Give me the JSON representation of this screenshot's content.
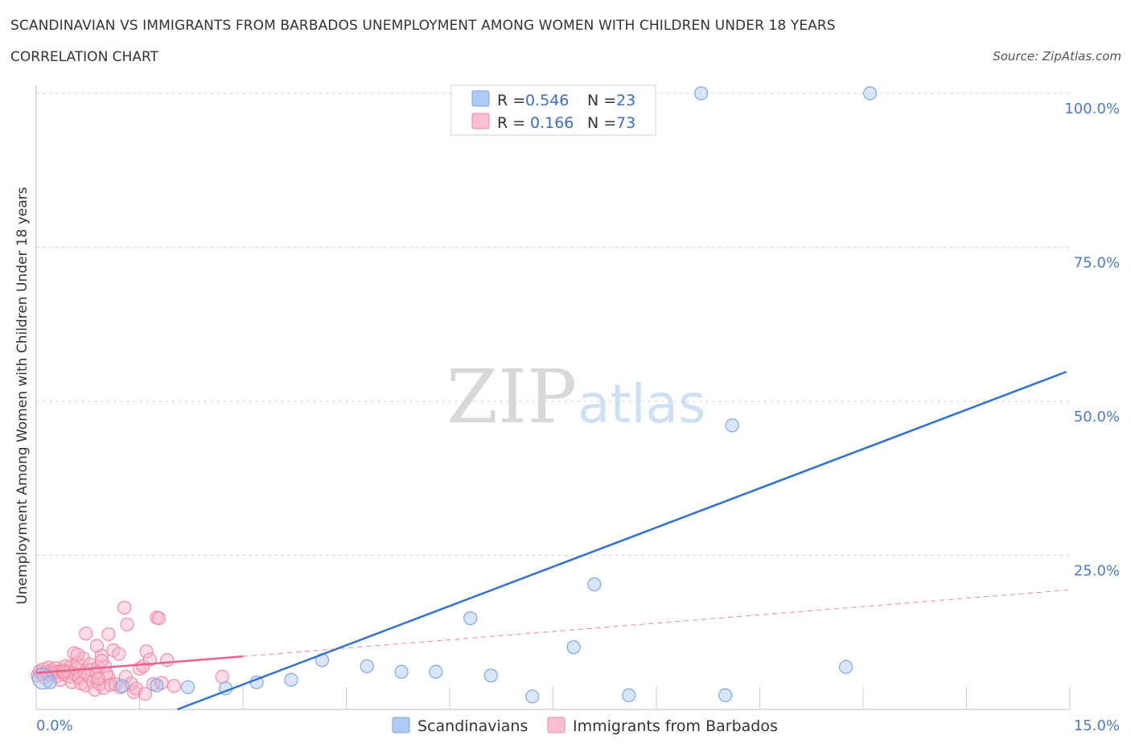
{
  "header": {
    "title": "SCANDINAVIAN VS IMMIGRANTS FROM BARBADOS UNEMPLOYMENT AMONG WOMEN WITH CHILDREN UNDER 18 YEARS",
    "subtitle": "CORRELATION CHART",
    "source": "Source: ZipAtlas.com"
  },
  "watermark": {
    "zip": "ZIP",
    "atlas": "atlas"
  },
  "legend": {
    "r_label": "R =",
    "n_label": "N =",
    "rows": [
      {
        "r": "0.546",
        "n": "23",
        "color": "#aecbf5",
        "stroke": "#7aa5e0"
      },
      {
        "r": "0.166",
        "n": "73",
        "color": "#f9bfd0",
        "stroke": "#f08aa8"
      }
    ]
  },
  "colors": {
    "blue_point_fill": "rgba(170,198,240,0.45)",
    "blue_point_stroke": "#7fa8e4",
    "blue_line": "#2f72cf",
    "pink_point_fill": "rgba(249,180,200,0.45)",
    "pink_point_stroke": "#f08aa8",
    "pink_line": "#e8628f",
    "grid": "#d6d6d6",
    "axis_tick": "#4a7cc7"
  },
  "chart_data": {
    "type": "scatter",
    "title": "SCANDINAVIAN VS IMMIGRANTS FROM BARBADOS UNEMPLOYMENT AMONG WOMEN WITH CHILDREN UNDER 18 YEARS",
    "subtitle": "CORRELATION CHART",
    "xlabel": "",
    "ylabel": "Unemployment Among Women with Children Under 18 years",
    "xlim": [
      0,
      15
    ],
    "ylim": [
      0,
      100
    ],
    "x_tick_labels": [
      "0.0%",
      "15.0%"
    ],
    "y_tick_labels": [
      "25.0%",
      "50.0%",
      "75.0%",
      "100.0%"
    ],
    "y_ticks": [
      25,
      50,
      75,
      100
    ],
    "grid": true,
    "legend_position": "top-center",
    "series": [
      {
        "name": "Scandinavians",
        "R": 0.546,
        "N": 23,
        "points": [
          [
            0.1,
            5.0
          ],
          [
            0.2,
            4.4
          ],
          [
            1.25,
            3.8
          ],
          [
            1.75,
            3.9
          ],
          [
            2.2,
            3.6
          ],
          [
            2.75,
            3.4
          ],
          [
            3.2,
            4.4
          ],
          [
            3.7,
            4.8
          ],
          [
            4.15,
            8.0
          ],
          [
            4.8,
            7.0
          ],
          [
            5.3,
            6.1
          ],
          [
            5.8,
            6.1
          ],
          [
            6.3,
            14.8
          ],
          [
            6.6,
            5.5
          ],
          [
            7.2,
            2.1
          ],
          [
            7.8,
            10.1
          ],
          [
            8.1,
            20.3
          ],
          [
            8.6,
            2.3
          ],
          [
            10.0,
            2.3
          ],
          [
            10.1,
            46.1
          ],
          [
            9.65,
            100
          ],
          [
            11.75,
            6.9
          ],
          [
            12.1,
            100
          ]
        ],
        "trendline": {
          "x": [
            2.05,
            14.95
          ],
          "y": [
            0,
            54.8
          ]
        }
      },
      {
        "name": "Immigrants from Barbados",
        "R": 0.166,
        "N": 73,
        "points": [
          [
            0.02,
            5.5
          ],
          [
            0.05,
            6.2
          ],
          [
            0.08,
            5.8
          ],
          [
            0.1,
            6.5
          ],
          [
            0.12,
            5.2
          ],
          [
            0.15,
            6.0
          ],
          [
            0.18,
            6.8
          ],
          [
            0.2,
            5.6
          ],
          [
            0.22,
            6.3
          ],
          [
            0.25,
            5.9
          ],
          [
            0.28,
            6.7
          ],
          [
            0.3,
            5.4
          ],
          [
            0.32,
            6.1
          ],
          [
            0.35,
            4.8
          ],
          [
            0.38,
            6.4
          ],
          [
            0.4,
            5.7
          ],
          [
            0.42,
            7.0
          ],
          [
            0.45,
            6.2
          ],
          [
            0.48,
            5.3
          ],
          [
            0.5,
            6.9
          ],
          [
            0.52,
            4.4
          ],
          [
            0.55,
            5.8
          ],
          [
            0.58,
            6.6
          ],
          [
            0.6,
            7.6
          ],
          [
            0.62,
            5.1
          ],
          [
            0.65,
            4.2
          ],
          [
            0.68,
            8.3
          ],
          [
            0.7,
            6.0
          ],
          [
            0.72,
            3.9
          ],
          [
            0.75,
            5.5
          ],
          [
            0.78,
            7.3
          ],
          [
            0.8,
            6.4
          ],
          [
            0.82,
            4.5
          ],
          [
            0.85,
            3.2
          ],
          [
            0.88,
            5.9
          ],
          [
            0.9,
            6.8
          ],
          [
            0.92,
            4.1
          ],
          [
            0.95,
            8.7
          ],
          [
            0.98,
            3.5
          ],
          [
            1.0,
            7.0
          ],
          [
            1.05,
            5.2
          ],
          [
            1.08,
            4.0
          ],
          [
            0.55,
            9.1
          ],
          [
            0.6,
            8.9
          ],
          [
            0.72,
            12.3
          ],
          [
            0.88,
            10.3
          ],
          [
            0.95,
            7.9
          ],
          [
            1.02,
            5.8
          ],
          [
            1.05,
            12.2
          ],
          [
            1.12,
            9.6
          ],
          [
            1.2,
            9.0
          ],
          [
            1.15,
            4.1
          ],
          [
            1.22,
            3.6
          ],
          [
            1.28,
            16.5
          ],
          [
            1.3,
            5.3
          ],
          [
            1.32,
            13.8
          ],
          [
            1.38,
            4.2
          ],
          [
            1.42,
            2.8
          ],
          [
            1.45,
            3.4
          ],
          [
            1.5,
            6.6
          ],
          [
            1.55,
            7.0
          ],
          [
            1.58,
            2.5
          ],
          [
            1.6,
            9.4
          ],
          [
            1.65,
            8.1
          ],
          [
            1.7,
            4.1
          ],
          [
            1.75,
            14.9
          ],
          [
            1.78,
            14.8
          ],
          [
            1.82,
            4.3
          ],
          [
            1.9,
            8.0
          ],
          [
            2.0,
            3.8
          ],
          [
            2.7,
            5.3
          ],
          [
            0.9,
            5.0
          ],
          [
            0.4,
            6.1
          ]
        ],
        "trendline": {
          "x": [
            0,
            3.0
          ],
          "y": [
            5.9,
            8.6
          ]
        },
        "trendline_extended": {
          "x": [
            3.0,
            15.0
          ],
          "y": [
            8.6,
            19.4
          ]
        }
      }
    ]
  },
  "bottom_legend": [
    {
      "label": "Scandinavians",
      "series": 0
    },
    {
      "label": "Immigrants from Barbados",
      "series": 1
    }
  ]
}
